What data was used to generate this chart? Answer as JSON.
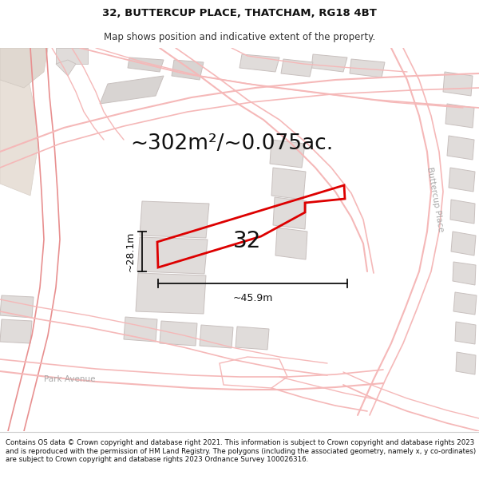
{
  "title_line1": "32, BUTTERCUP PLACE, THATCHAM, RG18 4BT",
  "title_line2": "Map shows position and indicative extent of the property.",
  "area_text": "~302m²/~0.075ac.",
  "dim_width": "~45.9m",
  "dim_height": "~28.1m",
  "label_number": "32",
  "street_label_buttercup": "Buttercup Place",
  "street_label_park": "Park Avenue",
  "copyright_text": "Contains OS data © Crown copyright and database right 2021. This information is subject to Crown copyright and database rights 2023 and is reproduced with the permission of HM Land Registry. The polygons (including the associated geometry, namely x, y co-ordinates) are subject to Crown copyright and database rights 2023 Ordnance Survey 100026316.",
  "road_color": "#f5b8b8",
  "road_color_dark": "#e89090",
  "building_fill": "#e0dcda",
  "building_fill2": "#d8d4d2",
  "building_stroke": "#c8c0be",
  "property_color": "#dd0000",
  "dim_color": "#111111",
  "map_bg": "#ffffff",
  "left_panel_bg": "#ede8e4",
  "title_fs": 9.5,
  "subtitle_fs": 8.5,
  "area_fs": 19,
  "dim_fs": 9,
  "label_fs": 20,
  "copyright_fs": 6.2,
  "street_fs": 7.5
}
